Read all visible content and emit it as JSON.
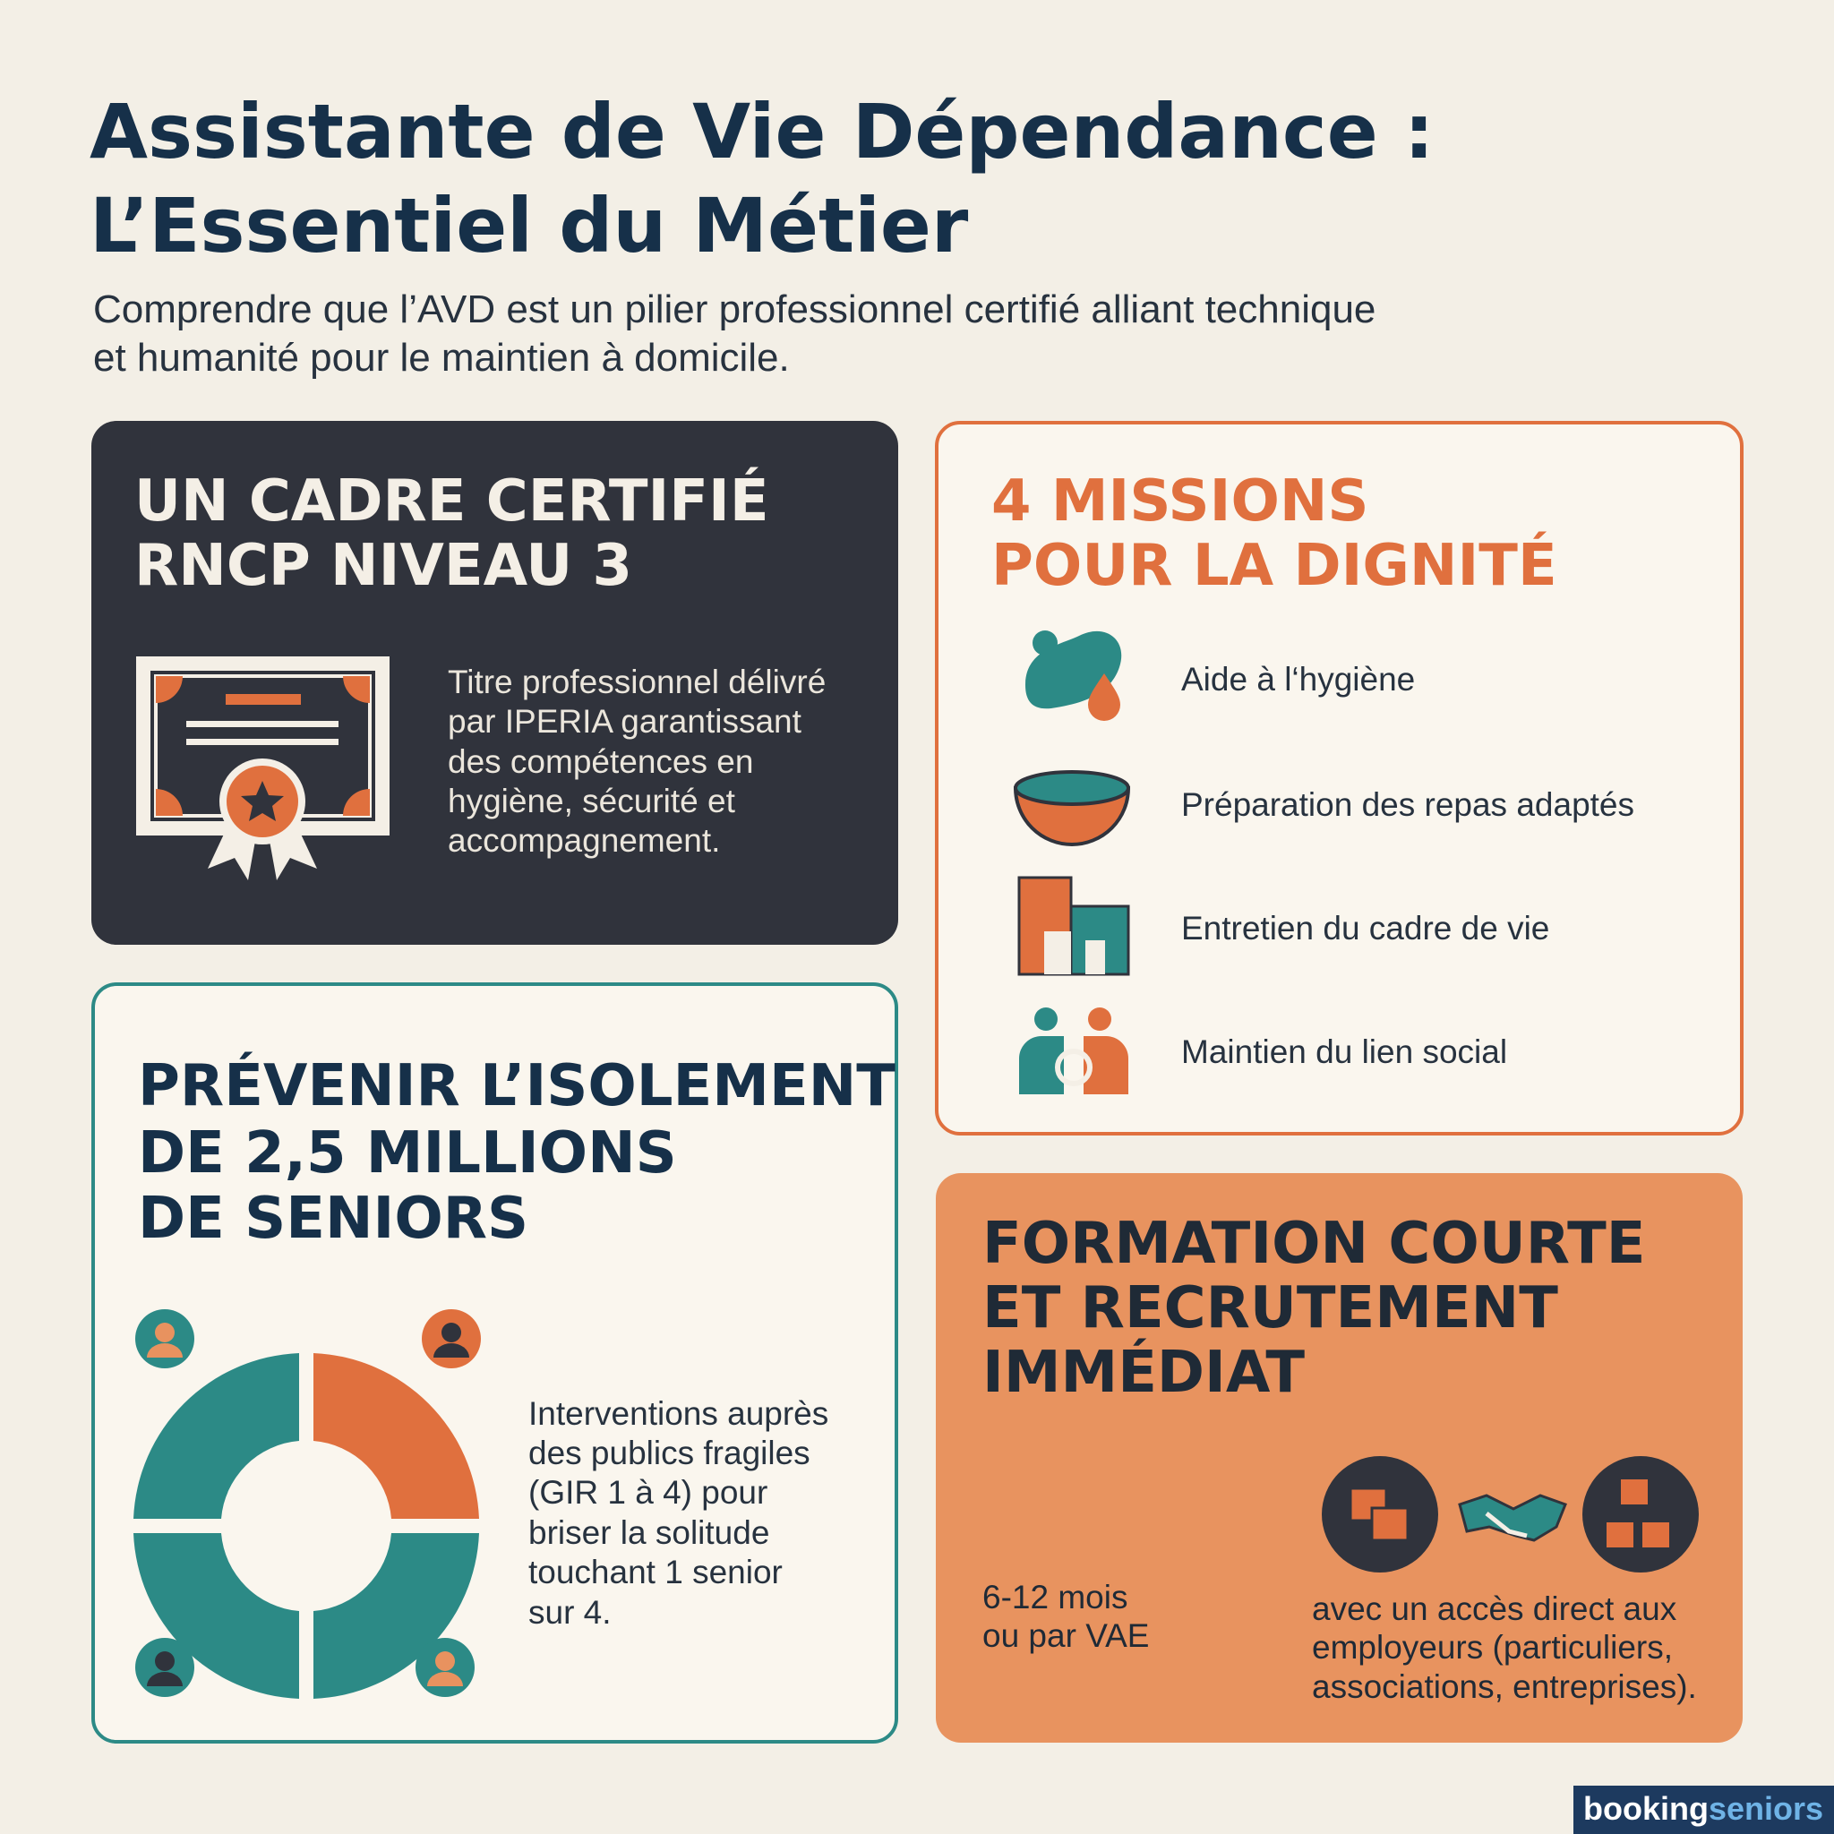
{
  "header": {
    "title": [
      "Assistante de Vie Dépendance :",
      "L’Essentiel du Métier"
    ],
    "subtitle": [
      "Comprendre que l’AVD est un pilier professionnel certifié alliant technique",
      "et humanité pour le maintien à domicile."
    ]
  },
  "cards": {
    "certification": {
      "title": [
        "UN CADRE CERTIFIÉ",
        "RNCP NIVEAU 3"
      ],
      "text": [
        "Titre professionnel délivré",
        "par IPERIA garantissant",
        "des compétences en",
        "hygiène, sécurité et",
        "accompagnement."
      ]
    },
    "missions": {
      "title": [
        "4 MISSIONS",
        "POUR LA DIGNITÉ"
      ],
      "items": [
        "Aide à l‘hygiène",
        "Préparation des repas adaptés",
        "Entretien du cadre de vie",
        "Maintien du lien social"
      ]
    },
    "isolation": {
      "title": [
        "PRÉVENIR L’ISOLEMENT",
        "DE 2,5 MILLIONS",
        "DE SENIORS"
      ],
      "text": [
        "Interventions auprès",
        "des publics fragiles",
        "(GIR 1 à 4) pour",
        "briser la solitude",
        "touchant 1 senior",
        "sur 4."
      ]
    },
    "training": {
      "title": [
        "FORMATION COURTE",
        "ET RECRUTEMENT",
        "IMMÉDIAT"
      ],
      "duration": [
        "6-12 mois",
        "ou par VAE"
      ],
      "text": [
        "avec un accès direct aux",
        "employeurs (particuliers,",
        "associations, entreprises)."
      ]
    }
  },
  "footer": {
    "brand": [
      "booking",
      "seniors"
    ]
  }
}
